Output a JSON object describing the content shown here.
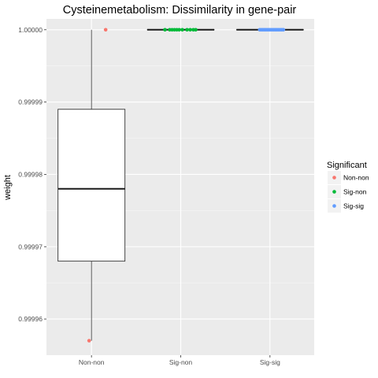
{
  "chart_data": {
    "type": "boxplot",
    "title": "Cysteinemetabolism: Dissimilarity in gene-pair",
    "xlabel": "",
    "ylabel": "weight",
    "categories": [
      "Non-non",
      "Sig-non",
      "Sig-sig"
    ],
    "ylim": [
      0.999955,
      1.0000015
    ],
    "yticks": [
      0.99996,
      0.99997,
      0.99998,
      0.99999,
      1.0
    ],
    "ytick_labels": [
      "0.99996",
      "0.99997",
      "0.99998",
      "0.99999",
      "1.00000"
    ],
    "grid": true,
    "legend": {
      "title": "Significant",
      "position": "right",
      "entries": [
        {
          "label": "Non-non",
          "color": "#F8766D"
        },
        {
          "label": "Sig-non",
          "color": "#00BA38"
        },
        {
          "label": "Sig-sig",
          "color": "#619CFF"
        }
      ]
    },
    "boxes": [
      {
        "category": "Non-non",
        "lower_whisker": 0.999957,
        "q1": 0.999968,
        "median": 0.999978,
        "q3": 0.999989,
        "upper_whisker": 1.0
      },
      {
        "category": "Sig-non",
        "lower_whisker": 1.0,
        "q1": 1.0,
        "median": 1.0,
        "q3": 1.0,
        "upper_whisker": 1.0
      },
      {
        "category": "Sig-sig",
        "lower_whisker": 1.0,
        "q1": 1.0,
        "median": 1.0,
        "q3": 1.0,
        "upper_whisker": 1.0
      }
    ],
    "points": [
      {
        "category": "Non-non",
        "group": "Non-non",
        "values": [
          1.0,
          0.999957
        ]
      },
      {
        "category": "Sig-non",
        "group": "Sig-non",
        "values": [
          1.0,
          1.0,
          1.0,
          1.0,
          1.0,
          1.0,
          1.0,
          1.0,
          1.0,
          1.0,
          1.0
        ]
      },
      {
        "category": "Sig-sig",
        "group": "Sig-sig",
        "values": [
          1.0,
          1.0,
          1.0,
          1.0,
          1.0,
          1.0,
          1.0,
          1.0,
          1.0,
          1.0,
          1.0,
          1.0,
          1.0,
          1.0,
          1.0,
          1.0
        ]
      }
    ]
  }
}
